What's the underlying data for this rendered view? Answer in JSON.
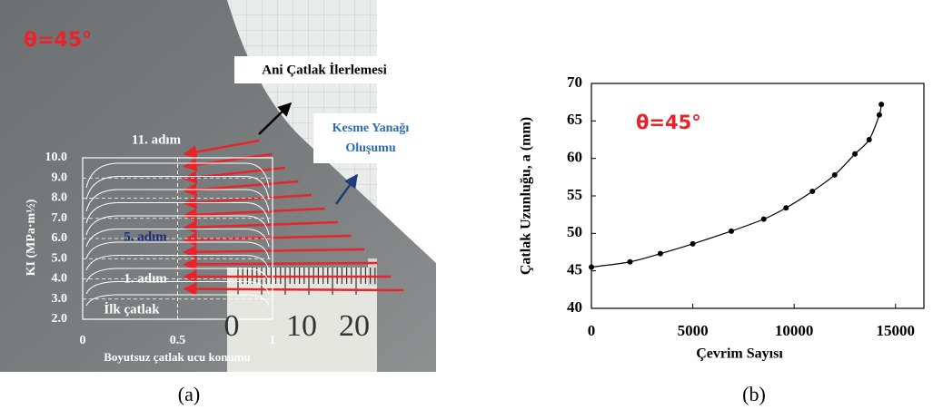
{
  "panel_a": {
    "annotation": "θ=45°",
    "arrow_label": "Ani Çatlak İlerlemesi",
    "shear_label": [
      "Kesme Yanağı",
      "Oluşumu"
    ],
    "step_labels": [
      "11. adım",
      "5. adım",
      "1. adım",
      "İlk çatlak"
    ],
    "ruler_labels": [
      "0",
      "10",
      "20"
    ],
    "inset": {
      "ylabel": "KI (MPa·m½)",
      "xlabel": "Boyutsuz çatlak ucu konumu",
      "ylim": [
        2,
        10
      ],
      "yticks": [
        {
          "value": 2,
          "label": "2.0"
        },
        {
          "value": 3,
          "label": "3.0"
        },
        {
          "value": 4,
          "label": "4.0"
        },
        {
          "value": 5,
          "label": "5.0"
        },
        {
          "value": 6,
          "label": "6.0"
        },
        {
          "value": 7,
          "label": "7.0"
        },
        {
          "value": 8,
          "label": "8.0"
        },
        {
          "value": 9,
          "label": "9.0"
        },
        {
          "value": 10,
          "label": "10.0"
        }
      ],
      "xlim": [
        0,
        1
      ],
      "xticks": [
        0,
        0.5,
        1
      ]
    }
  },
  "chart_data": {
    "type": "scatter",
    "annotation": "θ=45°",
    "xlabel": "Çevrim Sayısı",
    "ylabel": "Çatlak Uzunluğu, a (mm)",
    "x": [
      0,
      1900,
      3400,
      5000,
      6900,
      8500,
      9600,
      10900,
      12000,
      13000,
      13700,
      14200,
      14300
    ],
    "series": [
      {
        "color": "#000000",
        "values": [
          45.5,
          46.2,
          47.3,
          48.6,
          50.3,
          51.9,
          53.4,
          55.6,
          57.8,
          60.6,
          62.5,
          65.8,
          67.2
        ]
      }
    ],
    "xlim": [
      0,
      16400
    ],
    "ylim": [
      40,
      70
    ],
    "xticks": [
      0,
      5000,
      10000,
      15000
    ],
    "yticks": [
      40,
      45,
      50,
      55,
      60,
      65,
      70
    ]
  },
  "captions": [
    "(a)",
    "(b)"
  ]
}
